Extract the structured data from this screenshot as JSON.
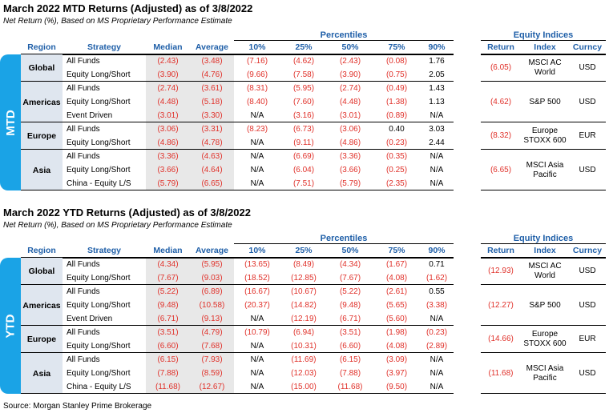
{
  "mtd": {
    "title": "March 2022 MTD Returns (Adjusted) as of 3/8/2022",
    "subtitle": "Net Return (%), Based on MS Proprietary Performance Estimate",
    "side_label": "MTD",
    "percentiles_label": "Percentiles",
    "headers": [
      "Region",
      "Strategy",
      "Median",
      "Average",
      "10%",
      "25%",
      "50%",
      "75%",
      "90%"
    ],
    "regions": [
      {
        "name": "Global",
        "rows": [
          [
            "All Funds",
            "(2.43)",
            "(3.48)",
            "(7.16)",
            "(4.62)",
            "(2.43)",
            "(0.08)",
            "1.76"
          ],
          [
            "Equity Long/Short",
            "(3.90)",
            "(4.76)",
            "(9.66)",
            "(7.58)",
            "(3.90)",
            "(0.75)",
            "2.05"
          ]
        ]
      },
      {
        "name": "Americas",
        "rows": [
          [
            "All Funds",
            "(2.74)",
            "(3.61)",
            "(8.31)",
            "(5.95)",
            "(2.74)",
            "(0.49)",
            "1.43"
          ],
          [
            "Equity Long/Short",
            "(4.48)",
            "(5.18)",
            "(8.40)",
            "(7.60)",
            "(4.48)",
            "(1.38)",
            "1.13"
          ],
          [
            "Event Driven",
            "(3.01)",
            "(3.30)",
            "N/A",
            "(3.16)",
            "(3.01)",
            "(0.89)",
            "N/A"
          ]
        ]
      },
      {
        "name": "Europe",
        "rows": [
          [
            "All Funds",
            "(3.06)",
            "(3.31)",
            "(8.23)",
            "(6.73)",
            "(3.06)",
            "0.40",
            "3.03"
          ],
          [
            "Equity Long/Short",
            "(4.86)",
            "(4.78)",
            "N/A",
            "(9.11)",
            "(4.86)",
            "(0.23)",
            "2.44"
          ]
        ]
      },
      {
        "name": "Asia",
        "rows": [
          [
            "All Funds",
            "(3.36)",
            "(4.63)",
            "N/A",
            "(6.69)",
            "(3.36)",
            "(0.35)",
            "N/A"
          ],
          [
            "Equity Long/Short",
            "(3.66)",
            "(4.64)",
            "N/A",
            "(6.04)",
            "(3.66)",
            "(0.25)",
            "N/A"
          ],
          [
            "China - Equity L/S",
            "(5.79)",
            "(6.65)",
            "N/A",
            "(7.51)",
            "(5.79)",
            "(2.35)",
            "N/A"
          ]
        ]
      }
    ],
    "indices_label": "Equity Indices",
    "index_headers": [
      "Return",
      "Index",
      "Curncy"
    ],
    "indices": [
      [
        "(6.05)",
        "MSCI AC World",
        "USD"
      ],
      [
        "(4.62)",
        "S&P 500",
        "USD"
      ],
      [
        "(8.32)",
        "Europe STOXX 600",
        "EUR"
      ],
      [
        "(6.65)",
        "MSCI Asia Pacific",
        "USD"
      ]
    ]
  },
  "ytd": {
    "title": "March 2022 YTD Returns (Adjusted) as of 3/8/2022",
    "subtitle": "Net Return (%), Based on MS Proprietary Performance Estimate",
    "side_label": "YTD",
    "percentiles_label": "Percentiles",
    "headers": [
      "Region",
      "Strategy",
      "Median",
      "Average",
      "10%",
      "25%",
      "50%",
      "75%",
      "90%"
    ],
    "regions": [
      {
        "name": "Global",
        "rows": [
          [
            "All Funds",
            "(4.34)",
            "(5.95)",
            "(13.65)",
            "(8.49)",
            "(4.34)",
            "(1.67)",
            "0.71"
          ],
          [
            "Equity Long/Short",
            "(7.67)",
            "(9.03)",
            "(18.52)",
            "(12.85)",
            "(7.67)",
            "(4.08)",
            "(1.62)"
          ]
        ]
      },
      {
        "name": "Americas",
        "rows": [
          [
            "All Funds",
            "(5.22)",
            "(6.89)",
            "(16.67)",
            "(10.67)",
            "(5.22)",
            "(2.61)",
            "0.55"
          ],
          [
            "Equity Long/Short",
            "(9.48)",
            "(10.58)",
            "(20.37)",
            "(14.82)",
            "(9.48)",
            "(5.65)",
            "(3.38)"
          ],
          [
            "Event Driven",
            "(6.71)",
            "(9.13)",
            "N/A",
            "(12.19)",
            "(6.71)",
            "(5.60)",
            "N/A"
          ]
        ]
      },
      {
        "name": "Europe",
        "rows": [
          [
            "All Funds",
            "(3.51)",
            "(4.79)",
            "(10.79)",
            "(6.94)",
            "(3.51)",
            "(1.98)",
            "(0.23)"
          ],
          [
            "Equity Long/Short",
            "(6.60)",
            "(7.68)",
            "N/A",
            "(10.31)",
            "(6.60)",
            "(4.08)",
            "(2.89)"
          ]
        ]
      },
      {
        "name": "Asia",
        "rows": [
          [
            "All Funds",
            "(6.15)",
            "(7.93)",
            "N/A",
            "(11.69)",
            "(6.15)",
            "(3.09)",
            "N/A"
          ],
          [
            "Equity Long/Short",
            "(7.88)",
            "(8.59)",
            "N/A",
            "(12.03)",
            "(7.88)",
            "(3.97)",
            "N/A"
          ],
          [
            "China - Equity L/S",
            "(11.68)",
            "(12.67)",
            "N/A",
            "(15.00)",
            "(11.68)",
            "(9.50)",
            "N/A"
          ]
        ]
      }
    ],
    "indices_label": "Equity Indices",
    "index_headers": [
      "Return",
      "Index",
      "Curncy"
    ],
    "indices": [
      [
        "(12.93)",
        "MSCI AC World",
        "USD"
      ],
      [
        "(12.27)",
        "S&P 500",
        "USD"
      ],
      [
        "(14.66)",
        "Europe STOXX 600",
        "EUR"
      ],
      [
        "(11.68)",
        "MSCI Asia Pacific",
        "USD"
      ]
    ]
  },
  "source": "Source: Morgan Stanley Prime Brokerage"
}
